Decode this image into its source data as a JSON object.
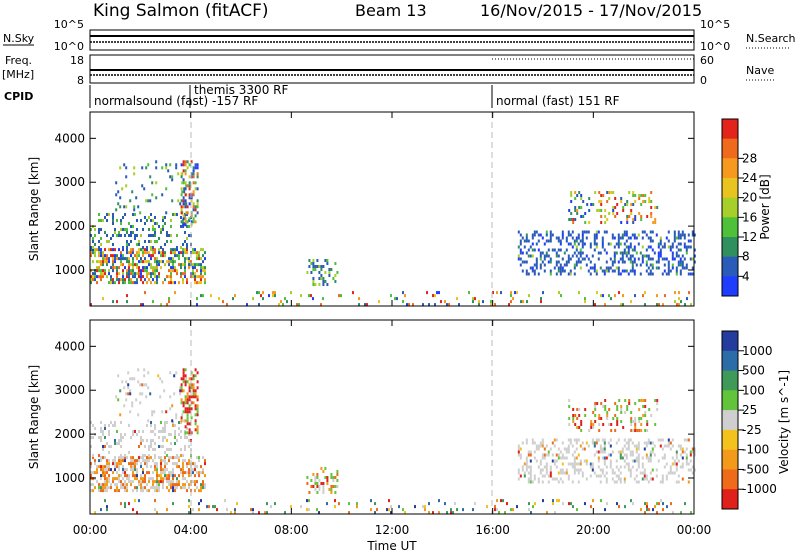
{
  "header": {
    "station": "King Salmon (fitACF)",
    "beam": "Beam 13",
    "dates": "16/Nov/2015 - 17/Nov/2015"
  },
  "strip": {
    "nsky_label": "N.Sky",
    "nsky_ticks": [
      "10^5",
      "10^0"
    ],
    "nsearch_label": "N.Search",
    "nsearch_ticks": [
      "10^5",
      "10^0"
    ],
    "freq_label": "Freq.",
    "freq_unit": "[MHz]",
    "freq_ticks": [
      "18",
      "8"
    ],
    "nave_label": "Nave",
    "nave_ticks": [
      "60",
      "0"
    ],
    "cpid_label": "CPID",
    "cpid_segments": [
      {
        "name": "normalsound (fast) -157 RF",
        "start_h": 0
      },
      {
        "name": "themis 3300 RF",
        "start_h": 4
      },
      {
        "name": "normal (fast) 151 RF",
        "start_h": 16
      }
    ]
  },
  "chart_data": [
    {
      "type": "heatmap",
      "name": "power-panel",
      "xlabel": "",
      "ylabel": "Slant Range [km]",
      "ylim": [
        180,
        4600
      ],
      "xlim": [
        0,
        24
      ],
      "yticks": [
        1000,
        2000,
        3000,
        4000
      ],
      "colorbar": {
        "label": "Power [dB]",
        "ticks": [
          "4",
          "8",
          "12",
          "16",
          "20",
          "24",
          "28"
        ],
        "colors": [
          "#1f3dff",
          "#2a5bb8",
          "#2f8f5e",
          "#4ec03a",
          "#a7cf2a",
          "#e9c320",
          "#f59a1e",
          "#f06a1d",
          "#e3241b"
        ]
      },
      "regions": [
        {
          "t": [
            0.0,
            4.6
          ],
          "r": [
            700,
            1500
          ],
          "dens": 0.55,
          "mix": "strong"
        },
        {
          "t": [
            0.0,
            4.0
          ],
          "r": [
            1500,
            2300
          ],
          "dens": 0.22,
          "mix": "mid"
        },
        {
          "t": [
            1.0,
            3.8
          ],
          "r": [
            2300,
            3500
          ],
          "dens": 0.12,
          "mix": "mid"
        },
        {
          "t": [
            3.6,
            4.3
          ],
          "r": [
            2000,
            3500
          ],
          "dens": 0.45,
          "mix": "strong"
        },
        {
          "t": [
            8.6,
            9.8
          ],
          "r": [
            650,
            1250
          ],
          "dens": 0.35,
          "mix": "mid"
        },
        {
          "t": [
            17.0,
            24.0
          ],
          "r": [
            900,
            1900
          ],
          "dens": 0.32,
          "mix": "weak"
        },
        {
          "t": [
            19.0,
            22.5
          ],
          "r": [
            2100,
            2800
          ],
          "dens": 0.22,
          "mix": "strong"
        },
        {
          "t": [
            0.0,
            24.0
          ],
          "r": [
            190,
            520
          ],
          "dens": 0.09,
          "mix": "mixed"
        }
      ]
    },
    {
      "type": "heatmap",
      "name": "velocity-panel",
      "xlabel": "Time UT",
      "ylabel": "Slant Range [km]",
      "ylim": [
        180,
        4600
      ],
      "xlim": [
        0,
        24
      ],
      "yticks": [
        1000,
        2000,
        3000,
        4000
      ],
      "xticks": [
        "00:00",
        "04:00",
        "08:00",
        "12:00",
        "16:00",
        "20:00",
        "00:00"
      ],
      "colorbar": {
        "label": "Velocity [m s^-1]",
        "ticks": [
          "1000",
          "500",
          "100",
          "25",
          "-25",
          "-100",
          "-500",
          "-1000"
        ],
        "colors": [
          "#233c9e",
          "#2c6ca8",
          "#3f9a5a",
          "#62c43a",
          "#cfcfcf",
          "#f3c21d",
          "#f39a1b",
          "#ef6b1a",
          "#e0201a"
        ]
      },
      "regions": [
        {
          "t": [
            0.0,
            4.6
          ],
          "r": [
            700,
            1500
          ],
          "dens": 0.55,
          "mix": "grey-orange"
        },
        {
          "t": [
            0.0,
            4.0
          ],
          "r": [
            1500,
            2300
          ],
          "dens": 0.22,
          "mix": "grey"
        },
        {
          "t": [
            1.0,
            3.8
          ],
          "r": [
            2300,
            3500
          ],
          "dens": 0.12,
          "mix": "grey"
        },
        {
          "t": [
            3.6,
            4.3
          ],
          "r": [
            2000,
            3500
          ],
          "dens": 0.45,
          "mix": "red-green"
        },
        {
          "t": [
            8.6,
            9.8
          ],
          "r": [
            650,
            1250
          ],
          "dens": 0.35,
          "mix": "orange-green"
        },
        {
          "t": [
            17.0,
            24.0
          ],
          "r": [
            900,
            1900
          ],
          "dens": 0.32,
          "mix": "grey"
        },
        {
          "t": [
            19.0,
            22.5
          ],
          "r": [
            2100,
            2800
          ],
          "dens": 0.22,
          "mix": "orange-green"
        },
        {
          "t": [
            0.0,
            24.0
          ],
          "r": [
            190,
            520
          ],
          "dens": 0.09,
          "mix": "mixed"
        }
      ]
    }
  ]
}
